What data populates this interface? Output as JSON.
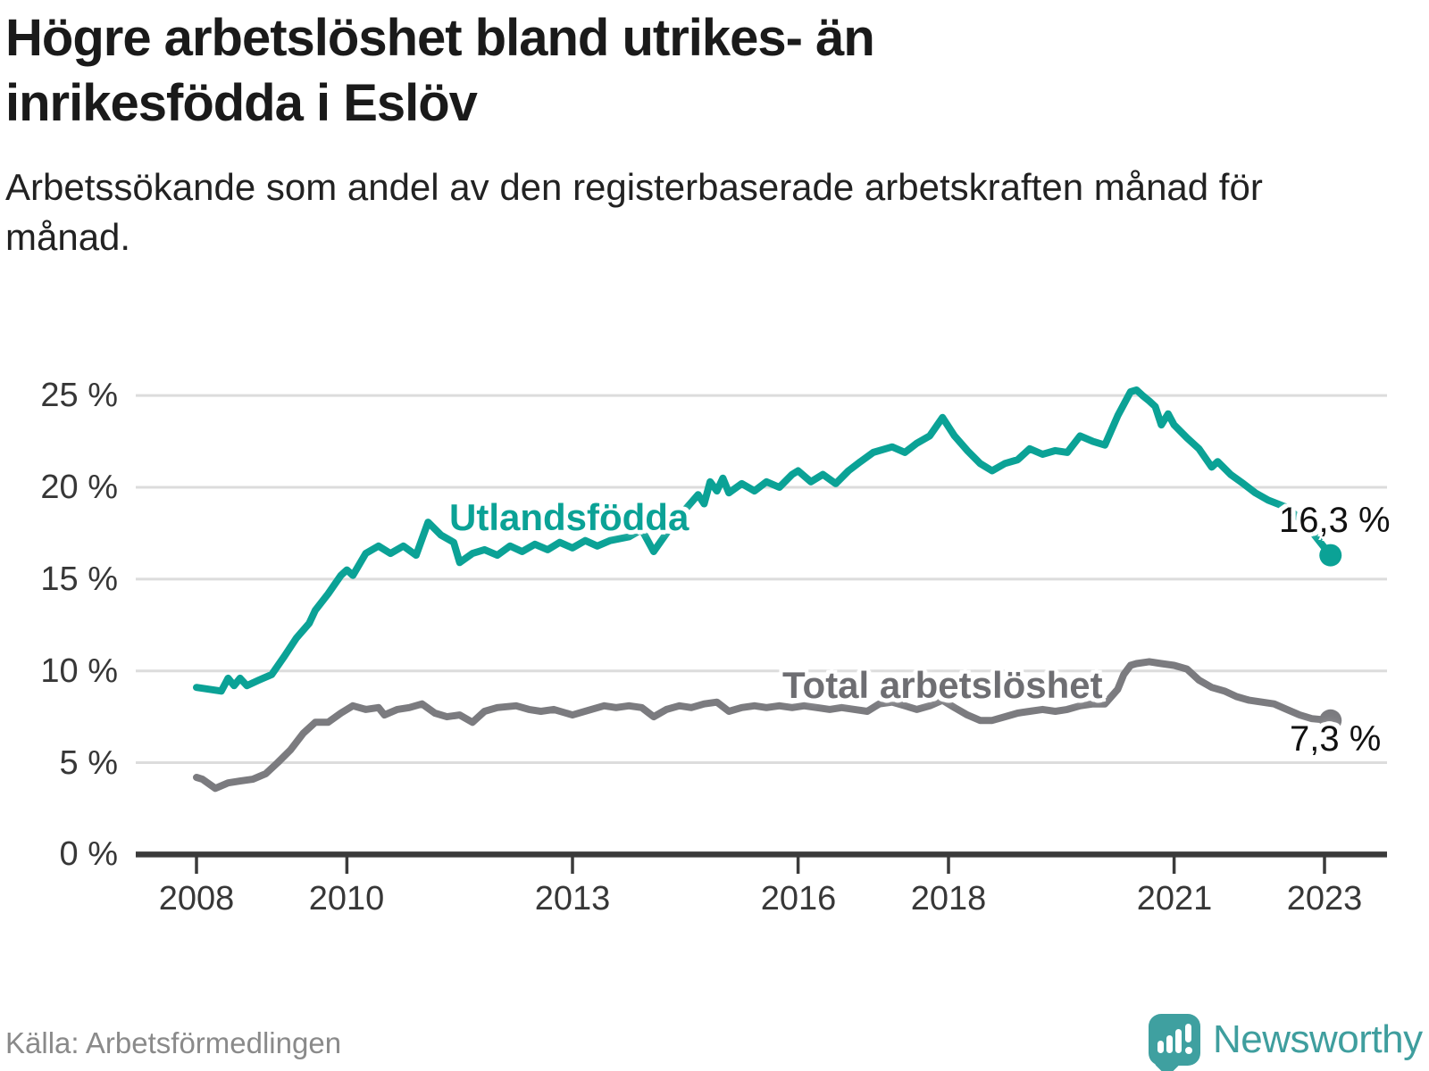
{
  "header": {
    "title": "Högre arbetslöshet bland utrikes- än inrikesfödda i Eslöv",
    "subtitle": "Arbetssökande som andel av den registerbaserade arbetskraften månad för månad."
  },
  "footer": {
    "source": "Källa: Arbetsförmedlingen",
    "brand": "Newsworthy"
  },
  "colors": {
    "accent_teal": "#0ba296",
    "series_gray": "#7b7b7f",
    "gridline": "#dcdcdc",
    "axis": "#3b3b3b",
    "text_dark": "#1a1a1a",
    "logo_teal": "#3fa0a0"
  },
  "chart_data": {
    "type": "line",
    "title": "Högre arbetslöshet bland utrikes- än inrikesfödda i Eslöv",
    "subtitle": "Arbetssökande som andel av den registerbaserade arbetskraften månad för månad.",
    "source": "Källa: Arbetsförmedlingen",
    "unit": "%",
    "grid": "horizontal",
    "legend_position": "inline-labels",
    "xlim": [
      2007.2,
      2023.8
    ],
    "ylim": [
      0,
      26.5
    ],
    "x_ticks": [
      2008,
      2010,
      2013,
      2016,
      2018,
      2021,
      2023
    ],
    "x_tick_labels": [
      "2008",
      "2010",
      "2013",
      "2016",
      "2018",
      "2021",
      "2023"
    ],
    "y_ticks": [
      25,
      20,
      15,
      10,
      5,
      0
    ],
    "y_tick_labels": [
      "25 %",
      "20 %",
      "15 %",
      "10 %",
      "5 %",
      "0 %"
    ],
    "series": [
      {
        "name": "Utlandsfödda",
        "color": "#0ba296",
        "end_label": "16,3 %",
        "end_value": 16.3,
        "points": [
          [
            2008.0,
            9.1
          ],
          [
            2008.17,
            9.0
          ],
          [
            2008.33,
            8.9
          ],
          [
            2008.42,
            9.6
          ],
          [
            2008.5,
            9.2
          ],
          [
            2008.58,
            9.6
          ],
          [
            2008.67,
            9.2
          ],
          [
            2008.83,
            9.5
          ],
          [
            2009.0,
            9.8
          ],
          [
            2009.17,
            10.8
          ],
          [
            2009.33,
            11.8
          ],
          [
            2009.5,
            12.6
          ],
          [
            2009.58,
            13.3
          ],
          [
            2009.75,
            14.2
          ],
          [
            2009.92,
            15.2
          ],
          [
            2010.0,
            15.5
          ],
          [
            2010.08,
            15.2
          ],
          [
            2010.25,
            16.4
          ],
          [
            2010.42,
            16.8
          ],
          [
            2010.58,
            16.4
          ],
          [
            2010.75,
            16.8
          ],
          [
            2010.92,
            16.3
          ],
          [
            2011.08,
            18.1
          ],
          [
            2011.25,
            17.4
          ],
          [
            2011.42,
            17.0
          ],
          [
            2011.5,
            15.9
          ],
          [
            2011.67,
            16.4
          ],
          [
            2011.83,
            16.6
          ],
          [
            2012.0,
            16.3
          ],
          [
            2012.17,
            16.8
          ],
          [
            2012.33,
            16.5
          ],
          [
            2012.5,
            16.9
          ],
          [
            2012.67,
            16.6
          ],
          [
            2012.83,
            17.0
          ],
          [
            2013.0,
            16.7
          ],
          [
            2013.17,
            17.1
          ],
          [
            2013.33,
            16.8
          ],
          [
            2013.5,
            17.1
          ],
          [
            2013.75,
            17.3
          ],
          [
            2013.92,
            17.7
          ],
          [
            2014.08,
            16.5
          ],
          [
            2014.25,
            17.5
          ],
          [
            2014.5,
            18.8
          ],
          [
            2014.67,
            19.6
          ],
          [
            2014.75,
            19.1
          ],
          [
            2014.83,
            20.3
          ],
          [
            2014.92,
            19.8
          ],
          [
            2015.0,
            20.5
          ],
          [
            2015.08,
            19.7
          ],
          [
            2015.25,
            20.2
          ],
          [
            2015.42,
            19.8
          ],
          [
            2015.58,
            20.3
          ],
          [
            2015.75,
            20.0
          ],
          [
            2015.92,
            20.7
          ],
          [
            2016.0,
            20.9
          ],
          [
            2016.17,
            20.3
          ],
          [
            2016.33,
            20.7
          ],
          [
            2016.5,
            20.2
          ],
          [
            2016.67,
            20.9
          ],
          [
            2016.83,
            21.4
          ],
          [
            2017.0,
            21.9
          ],
          [
            2017.25,
            22.2
          ],
          [
            2017.42,
            21.9
          ],
          [
            2017.58,
            22.4
          ],
          [
            2017.75,
            22.8
          ],
          [
            2017.92,
            23.8
          ],
          [
            2018.08,
            22.8
          ],
          [
            2018.25,
            22.0
          ],
          [
            2018.42,
            21.3
          ],
          [
            2018.58,
            20.9
          ],
          [
            2018.75,
            21.3
          ],
          [
            2018.92,
            21.5
          ],
          [
            2019.08,
            22.1
          ],
          [
            2019.25,
            21.8
          ],
          [
            2019.42,
            22.0
          ],
          [
            2019.58,
            21.9
          ],
          [
            2019.75,
            22.8
          ],
          [
            2019.92,
            22.5
          ],
          [
            2020.08,
            22.3
          ],
          [
            2020.25,
            23.9
          ],
          [
            2020.42,
            25.2
          ],
          [
            2020.5,
            25.3
          ],
          [
            2020.58,
            25.0
          ],
          [
            2020.67,
            24.7
          ],
          [
            2020.75,
            24.4
          ],
          [
            2020.83,
            23.4
          ],
          [
            2020.92,
            24.0
          ],
          [
            2021.0,
            23.4
          ],
          [
            2021.17,
            22.7
          ],
          [
            2021.33,
            22.1
          ],
          [
            2021.5,
            21.1
          ],
          [
            2021.58,
            21.4
          ],
          [
            2021.75,
            20.7
          ],
          [
            2021.92,
            20.2
          ],
          [
            2022.08,
            19.7
          ],
          [
            2022.25,
            19.3
          ],
          [
            2022.5,
            18.9
          ],
          [
            2022.75,
            18.0
          ],
          [
            2023.08,
            16.3
          ]
        ]
      },
      {
        "name": "Total arbetslöshet",
        "color": "#7b7b7f",
        "end_label": "7,3 %",
        "end_value": 7.3,
        "points": [
          [
            2008.0,
            4.2
          ],
          [
            2008.08,
            4.1
          ],
          [
            2008.25,
            3.6
          ],
          [
            2008.42,
            3.9
          ],
          [
            2008.58,
            4.0
          ],
          [
            2008.75,
            4.1
          ],
          [
            2008.92,
            4.4
          ],
          [
            2009.08,
            5.0
          ],
          [
            2009.25,
            5.7
          ],
          [
            2009.42,
            6.6
          ],
          [
            2009.58,
            7.2
          ],
          [
            2009.75,
            7.2
          ],
          [
            2009.92,
            7.7
          ],
          [
            2010.08,
            8.1
          ],
          [
            2010.25,
            7.9
          ],
          [
            2010.42,
            8.0
          ],
          [
            2010.5,
            7.6
          ],
          [
            2010.67,
            7.9
          ],
          [
            2010.83,
            8.0
          ],
          [
            2011.0,
            8.2
          ],
          [
            2011.17,
            7.7
          ],
          [
            2011.33,
            7.5
          ],
          [
            2011.5,
            7.6
          ],
          [
            2011.67,
            7.2
          ],
          [
            2011.83,
            7.8
          ],
          [
            2012.0,
            8.0
          ],
          [
            2012.25,
            8.1
          ],
          [
            2012.42,
            7.9
          ],
          [
            2012.58,
            7.8
          ],
          [
            2012.75,
            7.9
          ],
          [
            2013.0,
            7.6
          ],
          [
            2013.25,
            7.9
          ],
          [
            2013.42,
            8.1
          ],
          [
            2013.58,
            8.0
          ],
          [
            2013.75,
            8.1
          ],
          [
            2013.92,
            8.0
          ],
          [
            2014.08,
            7.5
          ],
          [
            2014.25,
            7.9
          ],
          [
            2014.42,
            8.1
          ],
          [
            2014.58,
            8.0
          ],
          [
            2014.75,
            8.2
          ],
          [
            2014.92,
            8.3
          ],
          [
            2015.08,
            7.8
          ],
          [
            2015.25,
            8.0
          ],
          [
            2015.42,
            8.1
          ],
          [
            2015.58,
            8.0
          ],
          [
            2015.75,
            8.1
          ],
          [
            2015.92,
            8.0
          ],
          [
            2016.08,
            8.1
          ],
          [
            2016.25,
            8.0
          ],
          [
            2016.42,
            7.9
          ],
          [
            2016.58,
            8.0
          ],
          [
            2016.75,
            7.9
          ],
          [
            2016.92,
            7.8
          ],
          [
            2017.08,
            8.2
          ],
          [
            2017.25,
            8.3
          ],
          [
            2017.42,
            8.1
          ],
          [
            2017.58,
            7.9
          ],
          [
            2017.75,
            8.1
          ],
          [
            2017.92,
            8.4
          ],
          [
            2018.08,
            8.0
          ],
          [
            2018.25,
            7.6
          ],
          [
            2018.42,
            7.3
          ],
          [
            2018.58,
            7.3
          ],
          [
            2018.75,
            7.5
          ],
          [
            2018.92,
            7.7
          ],
          [
            2019.08,
            7.8
          ],
          [
            2019.25,
            7.9
          ],
          [
            2019.42,
            7.8
          ],
          [
            2019.58,
            7.9
          ],
          [
            2019.75,
            8.1
          ],
          [
            2019.92,
            8.2
          ],
          [
            2020.08,
            8.2
          ],
          [
            2020.25,
            9.0
          ],
          [
            2020.33,
            9.8
          ],
          [
            2020.42,
            10.3
          ],
          [
            2020.5,
            10.4
          ],
          [
            2020.67,
            10.5
          ],
          [
            2020.83,
            10.4
          ],
          [
            2021.0,
            10.3
          ],
          [
            2021.17,
            10.1
          ],
          [
            2021.33,
            9.5
          ],
          [
            2021.5,
            9.1
          ],
          [
            2021.67,
            8.9
          ],
          [
            2021.83,
            8.6
          ],
          [
            2022.0,
            8.4
          ],
          [
            2022.17,
            8.3
          ],
          [
            2022.33,
            8.2
          ],
          [
            2022.5,
            7.9
          ],
          [
            2022.67,
            7.6
          ],
          [
            2022.83,
            7.4
          ],
          [
            2023.08,
            7.3
          ]
        ]
      }
    ]
  }
}
